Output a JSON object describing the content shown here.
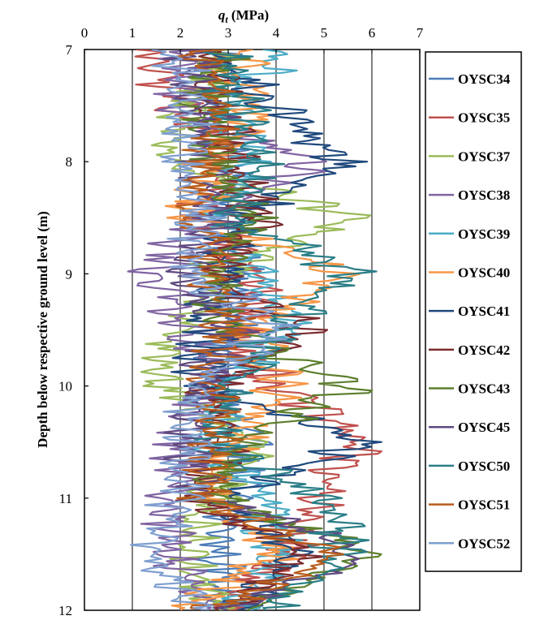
{
  "chart_data": {
    "type": "line",
    "title": "",
    "xlabel": {
      "symbol": "q",
      "subscript": "t",
      "units": "(MPa)"
    },
    "ylabel": "Depth below respective ground level (m)",
    "xlim": [
      0,
      7
    ],
    "ylim": [
      7,
      12
    ],
    "x_ticks": [
      0,
      1,
      2,
      3,
      4,
      5,
      6,
      7
    ],
    "y_ticks": [
      7,
      8,
      9,
      10,
      11,
      12
    ],
    "x_tick_labels": [
      "0",
      "1",
      "2",
      "3",
      "4",
      "5",
      "6",
      "7"
    ],
    "y_tick_labels": [
      "7",
      "8",
      "9",
      "10",
      "11",
      "12"
    ],
    "x_axis_position": "top",
    "y_inverted": true,
    "vertical_gridlines": true,
    "legend_position": "right",
    "series": [
      {
        "name": "OYSC34",
        "color": "#4a7bb7",
        "depth": [
          7,
          7.5,
          8,
          8.5,
          9,
          9.5,
          10,
          10.5,
          11,
          11.5,
          12
        ],
        "qt": [
          3.0,
          2.6,
          3.2,
          2.8,
          3.4,
          3.0,
          2.7,
          3.3,
          3.0,
          2.8,
          3.1
        ]
      },
      {
        "name": "OYSC35",
        "color": "#c0504d",
        "depth": [
          7,
          7.5,
          8,
          8.5,
          9,
          9.5,
          10,
          10.5,
          11,
          11.5,
          12
        ],
        "qt": [
          1.2,
          2.0,
          3.0,
          2.5,
          3.8,
          3.2,
          4.0,
          5.8,
          4.8,
          4.2,
          3.0
        ]
      },
      {
        "name": "OYSC37",
        "color": "#9bbb59",
        "depth": [
          7,
          7.5,
          8,
          8.5,
          9,
          9.5,
          10,
          10.5,
          11,
          11.5,
          12
        ],
        "qt": [
          2.8,
          2.2,
          1.7,
          5.6,
          2.9,
          2.0,
          1.6,
          3.6,
          2.6,
          2.2,
          2.8
        ]
      },
      {
        "name": "OYSC38",
        "color": "#8064a2",
        "depth": [
          7,
          7.5,
          8,
          8.5,
          9,
          9.5,
          10,
          10.5,
          11,
          11.5,
          12
        ],
        "qt": [
          2.0,
          1.8,
          4.8,
          2.4,
          1.5,
          2.2,
          2.8,
          2.0,
          1.8,
          1.8,
          2.5
        ]
      },
      {
        "name": "OYSC39",
        "color": "#4bacc6",
        "depth": [
          7,
          7.5,
          8,
          8.5,
          9,
          9.5,
          10,
          10.5,
          11,
          11.5,
          12
        ],
        "qt": [
          4.2,
          3.0,
          3.4,
          2.8,
          3.6,
          4.2,
          3.0,
          2.6,
          3.8,
          4.0,
          3.4
        ]
      },
      {
        "name": "OYSC40",
        "color": "#f79646",
        "depth": [
          7,
          7.5,
          8,
          8.5,
          9,
          9.5,
          10,
          10.5,
          11,
          11.5,
          12
        ],
        "qt": [
          3.2,
          3.6,
          2.6,
          2.2,
          5.4,
          3.4,
          4.2,
          3.2,
          2.6,
          4.0,
          2.0
        ]
      },
      {
        "name": "OYSC41",
        "color": "#1f497d",
        "depth": [
          7,
          7.5,
          8,
          8.5,
          9,
          9.5,
          10,
          10.5,
          11,
          11.5,
          12
        ],
        "qt": [
          2.5,
          4.0,
          5.4,
          3.2,
          3.0,
          2.6,
          2.4,
          5.8,
          3.0,
          4.4,
          3.2
        ]
      },
      {
        "name": "OYSC42",
        "color": "#7b2c2e",
        "depth": [
          7,
          7.5,
          8,
          8.5,
          9,
          9.5,
          10,
          10.5,
          11,
          11.5,
          12
        ],
        "qt": [
          2.6,
          2.8,
          3.0,
          3.6,
          2.8,
          4.6,
          2.6,
          3.0,
          2.2,
          4.8,
          2.8
        ]
      },
      {
        "name": "OYSC43",
        "color": "#5c7e2c",
        "depth": [
          7,
          7.5,
          8,
          8.5,
          9,
          9.5,
          10,
          10.5,
          11,
          11.5,
          12
        ],
        "qt": [
          3.0,
          2.4,
          2.8,
          3.4,
          2.6,
          3.0,
          5.6,
          3.2,
          2.8,
          6.0,
          3.4
        ]
      },
      {
        "name": "OYSC45",
        "color": "#5f4a80",
        "depth": [
          7,
          7.5,
          8,
          8.5,
          9,
          9.5,
          10,
          10.5,
          11,
          11.5,
          12
        ],
        "qt": [
          2.2,
          2.6,
          2.4,
          2.8,
          2.2,
          3.0,
          2.4,
          2.0,
          2.6,
          6.0,
          3.0
        ]
      },
      {
        "name": "OYSC50",
        "color": "#2a7e86",
        "depth": [
          7,
          7.5,
          8,
          8.5,
          9,
          9.5,
          10,
          10.5,
          11,
          11.5,
          12
        ],
        "qt": [
          2.8,
          3.2,
          3.6,
          3.0,
          5.6,
          4.0,
          3.2,
          2.6,
          5.0,
          5.4,
          3.8
        ]
      },
      {
        "name": "OYSC51",
        "color": "#b85c1c",
        "depth": [
          7,
          7.5,
          8,
          8.5,
          9,
          9.5,
          10,
          10.5,
          11,
          11.5,
          12
        ],
        "qt": [
          2.4,
          2.8,
          2.6,
          2.2,
          2.8,
          3.0,
          2.6,
          2.8,
          2.4,
          5.2,
          2.6
        ]
      },
      {
        "name": "OYSC52",
        "color": "#7f9fd0",
        "depth": [
          7,
          7.5,
          8,
          8.5,
          9,
          9.5,
          10,
          10.5,
          11,
          11.5,
          12
        ],
        "qt": [
          1.8,
          2.2,
          2.0,
          2.4,
          2.2,
          4.0,
          2.4,
          2.2,
          2.0,
          1.4,
          2.6
        ]
      }
    ]
  }
}
